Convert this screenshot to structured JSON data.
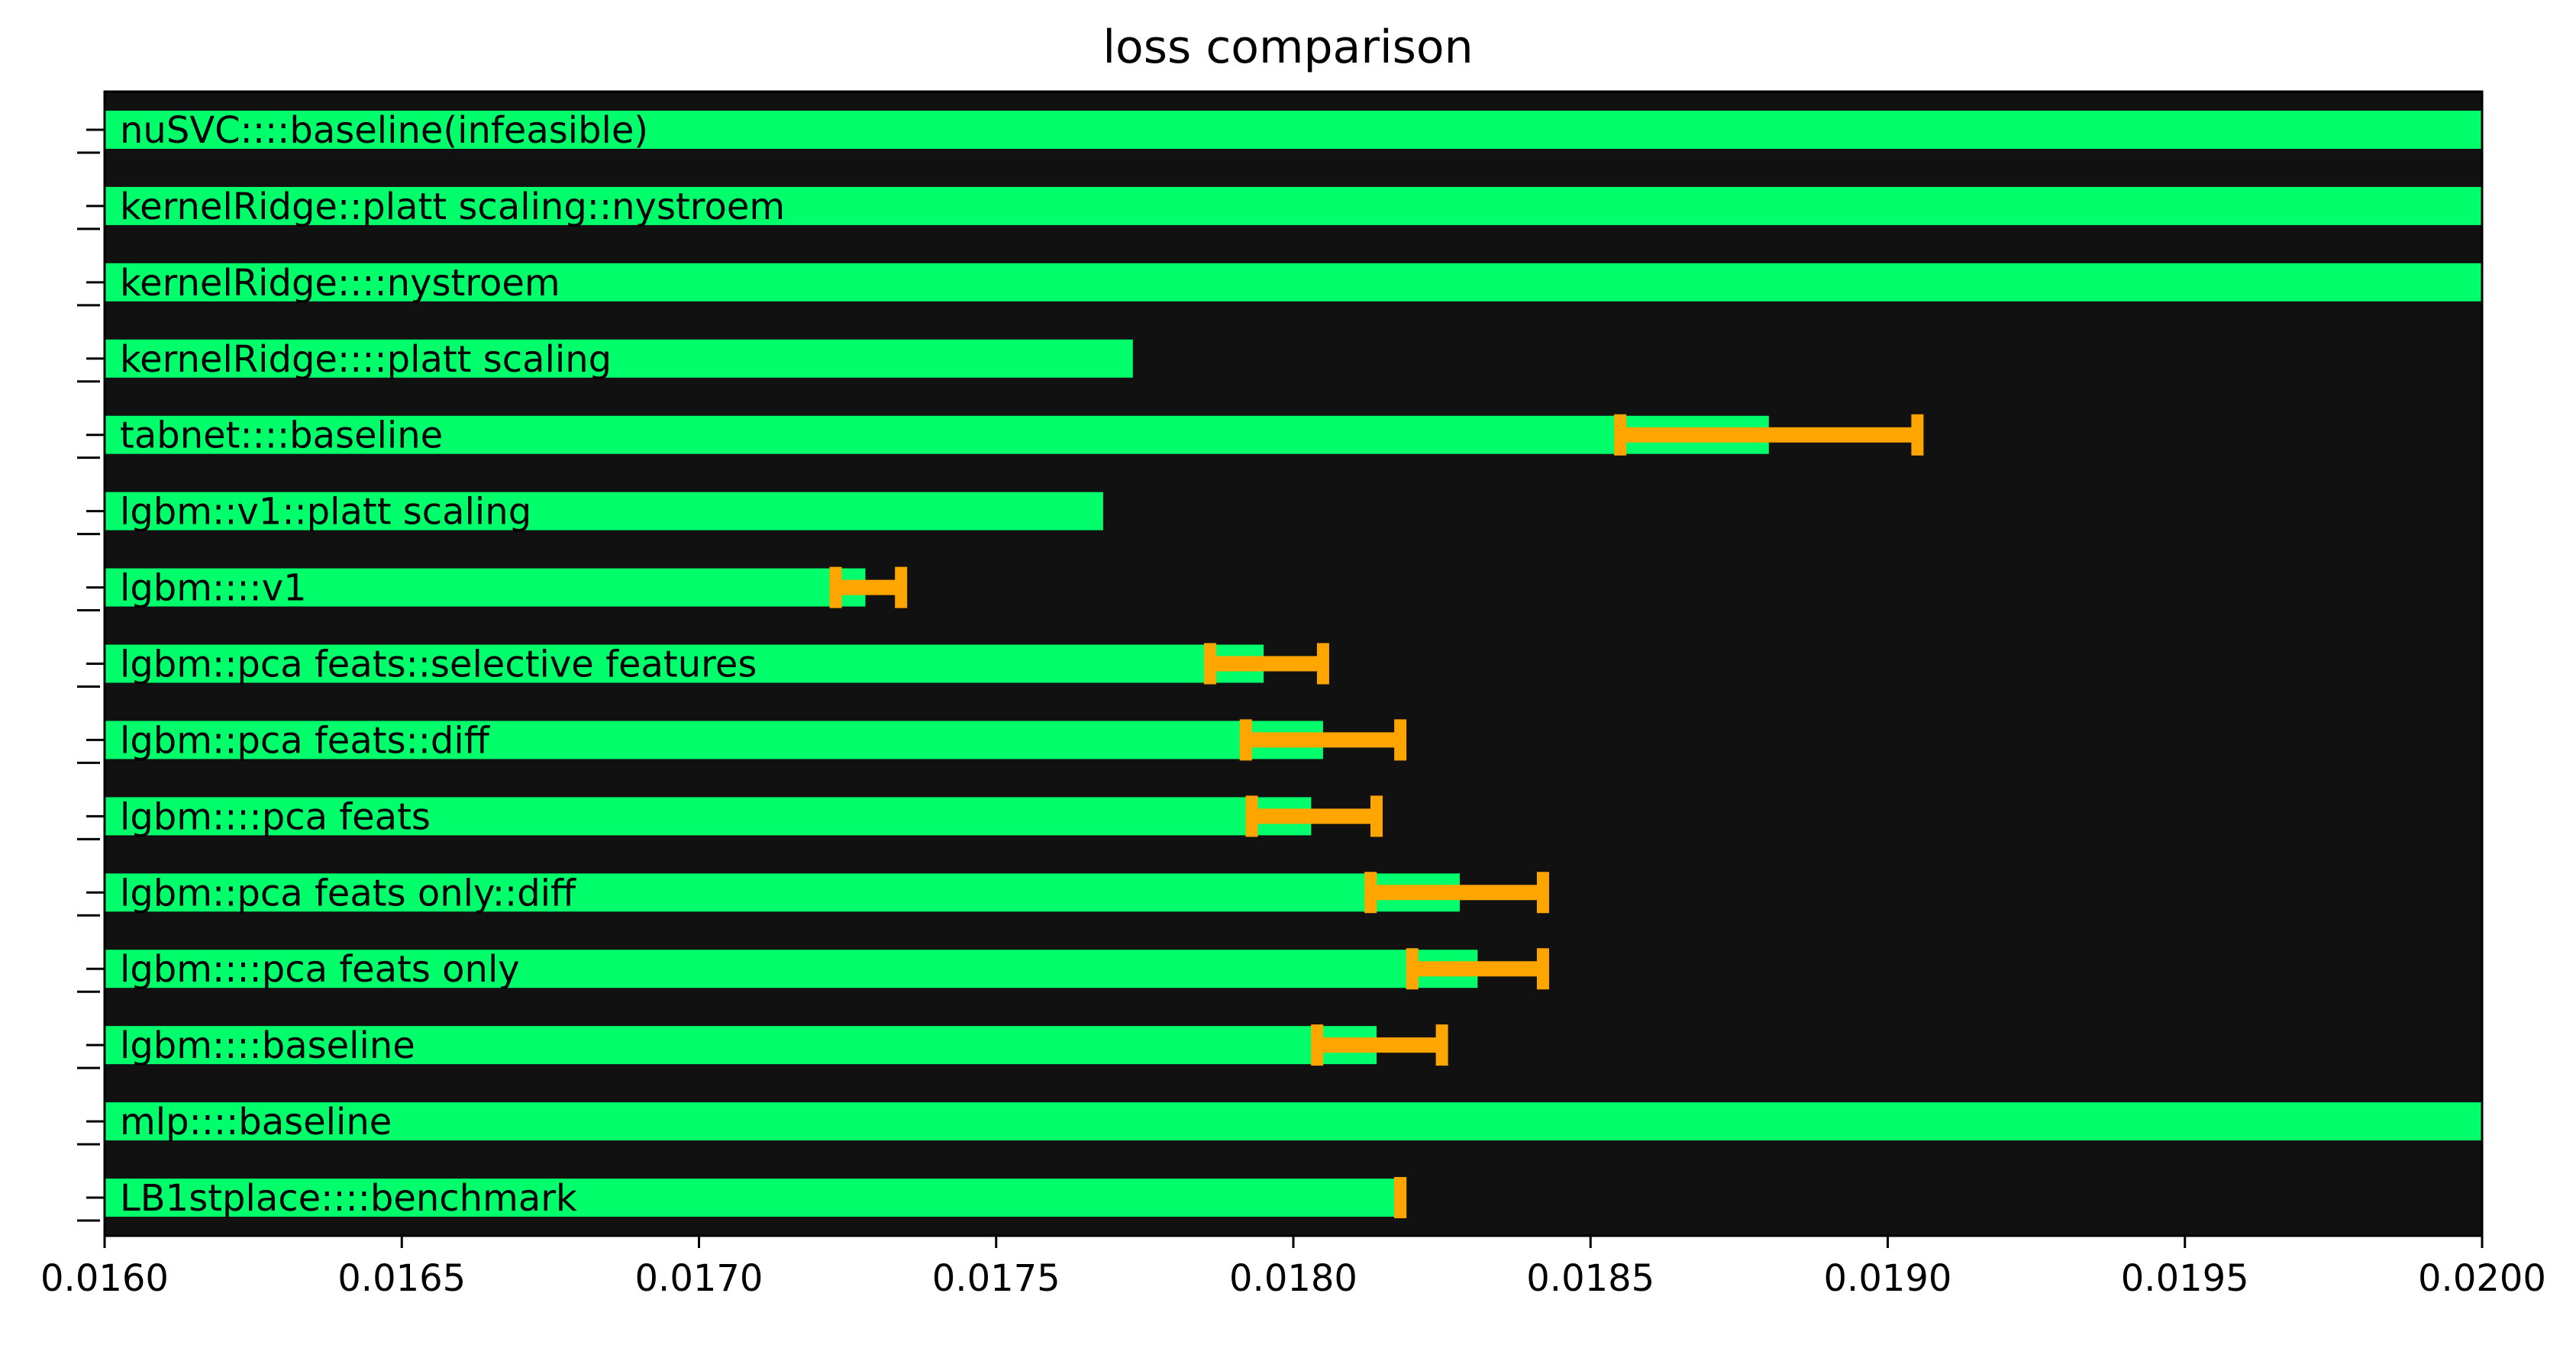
{
  "chart_data": {
    "type": "bar",
    "orientation": "horizontal",
    "title": "loss comparison",
    "xlabel": "",
    "ylabel": "",
    "xlim": [
      0.016,
      0.02
    ],
    "x_ticks": [
      "0.0160",
      "0.0165",
      "0.0170",
      "0.0175",
      "0.0180",
      "0.0185",
      "0.0190",
      "0.0195",
      "0.0200"
    ],
    "grid": false,
    "legend": "none",
    "colors": {
      "background": "#111111",
      "bar": "#00ff6a",
      "error": "#ffa500"
    },
    "categories": [
      "nuSVC::::baseline(infeasible)",
      "kernelRidge::platt scaling::nystroem",
      "kernelRidge::::nystroem",
      "kernelRidge::::platt scaling",
      "tabnet::::baseline",
      "lgbm::v1::platt scaling",
      "lgbm::::v1",
      "lgbm::pca feats::selective features",
      "lgbm::pca feats::diff",
      "lgbm::::pca feats",
      "lgbm::pca feats only::diff",
      "lgbm::::pca feats only",
      "lgbm::::baseline",
      "mlp::::baseline",
      "LB1stplace::::benchmark"
    ],
    "values": [
      0.02,
      0.02,
      0.02,
      0.01773,
      0.0188,
      0.01768,
      0.01728,
      0.01795,
      0.01805,
      0.01803,
      0.01828,
      0.01831,
      0.01814,
      0.02,
      0.01817
    ],
    "error_ranges": [
      null,
      null,
      null,
      null,
      [
        0.01855,
        0.01905
      ],
      null,
      [
        0.01723,
        0.01734
      ],
      [
        0.01786,
        0.01805
      ],
      [
        0.01792,
        0.01818
      ],
      [
        0.01793,
        0.01814
      ],
      [
        0.01813,
        0.01842
      ],
      [
        0.0182,
        0.01842
      ],
      [
        0.01804,
        0.01825
      ],
      null,
      [
        0.01818,
        0.01818
      ]
    ]
  }
}
